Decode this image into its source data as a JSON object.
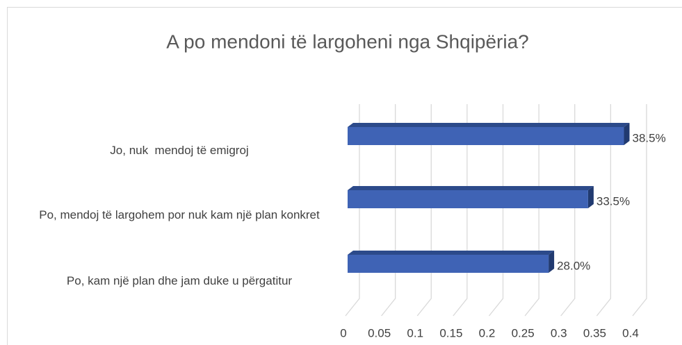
{
  "chart_data": {
    "type": "bar",
    "orientation": "horizontal",
    "title": "A po mendoni të largoheni nga Shqipëria?",
    "categories": [
      "Jo, nuk  mendoj të emigroj",
      "Po, mendoj të largohem por nuk kam një plan konkret",
      "Po, kam një plan dhe jam duke u përgatitur"
    ],
    "values": [
      0.385,
      0.335,
      0.28
    ],
    "value_labels": [
      "38.5%",
      "33.5%",
      "28.0%"
    ],
    "color": "#3f63b5",
    "xlim": [
      0,
      0.4
    ],
    "xticks": [
      0,
      0.05,
      0.1,
      0.15,
      0.2,
      0.25,
      0.3,
      0.35,
      0.4
    ],
    "grid": true
  }
}
